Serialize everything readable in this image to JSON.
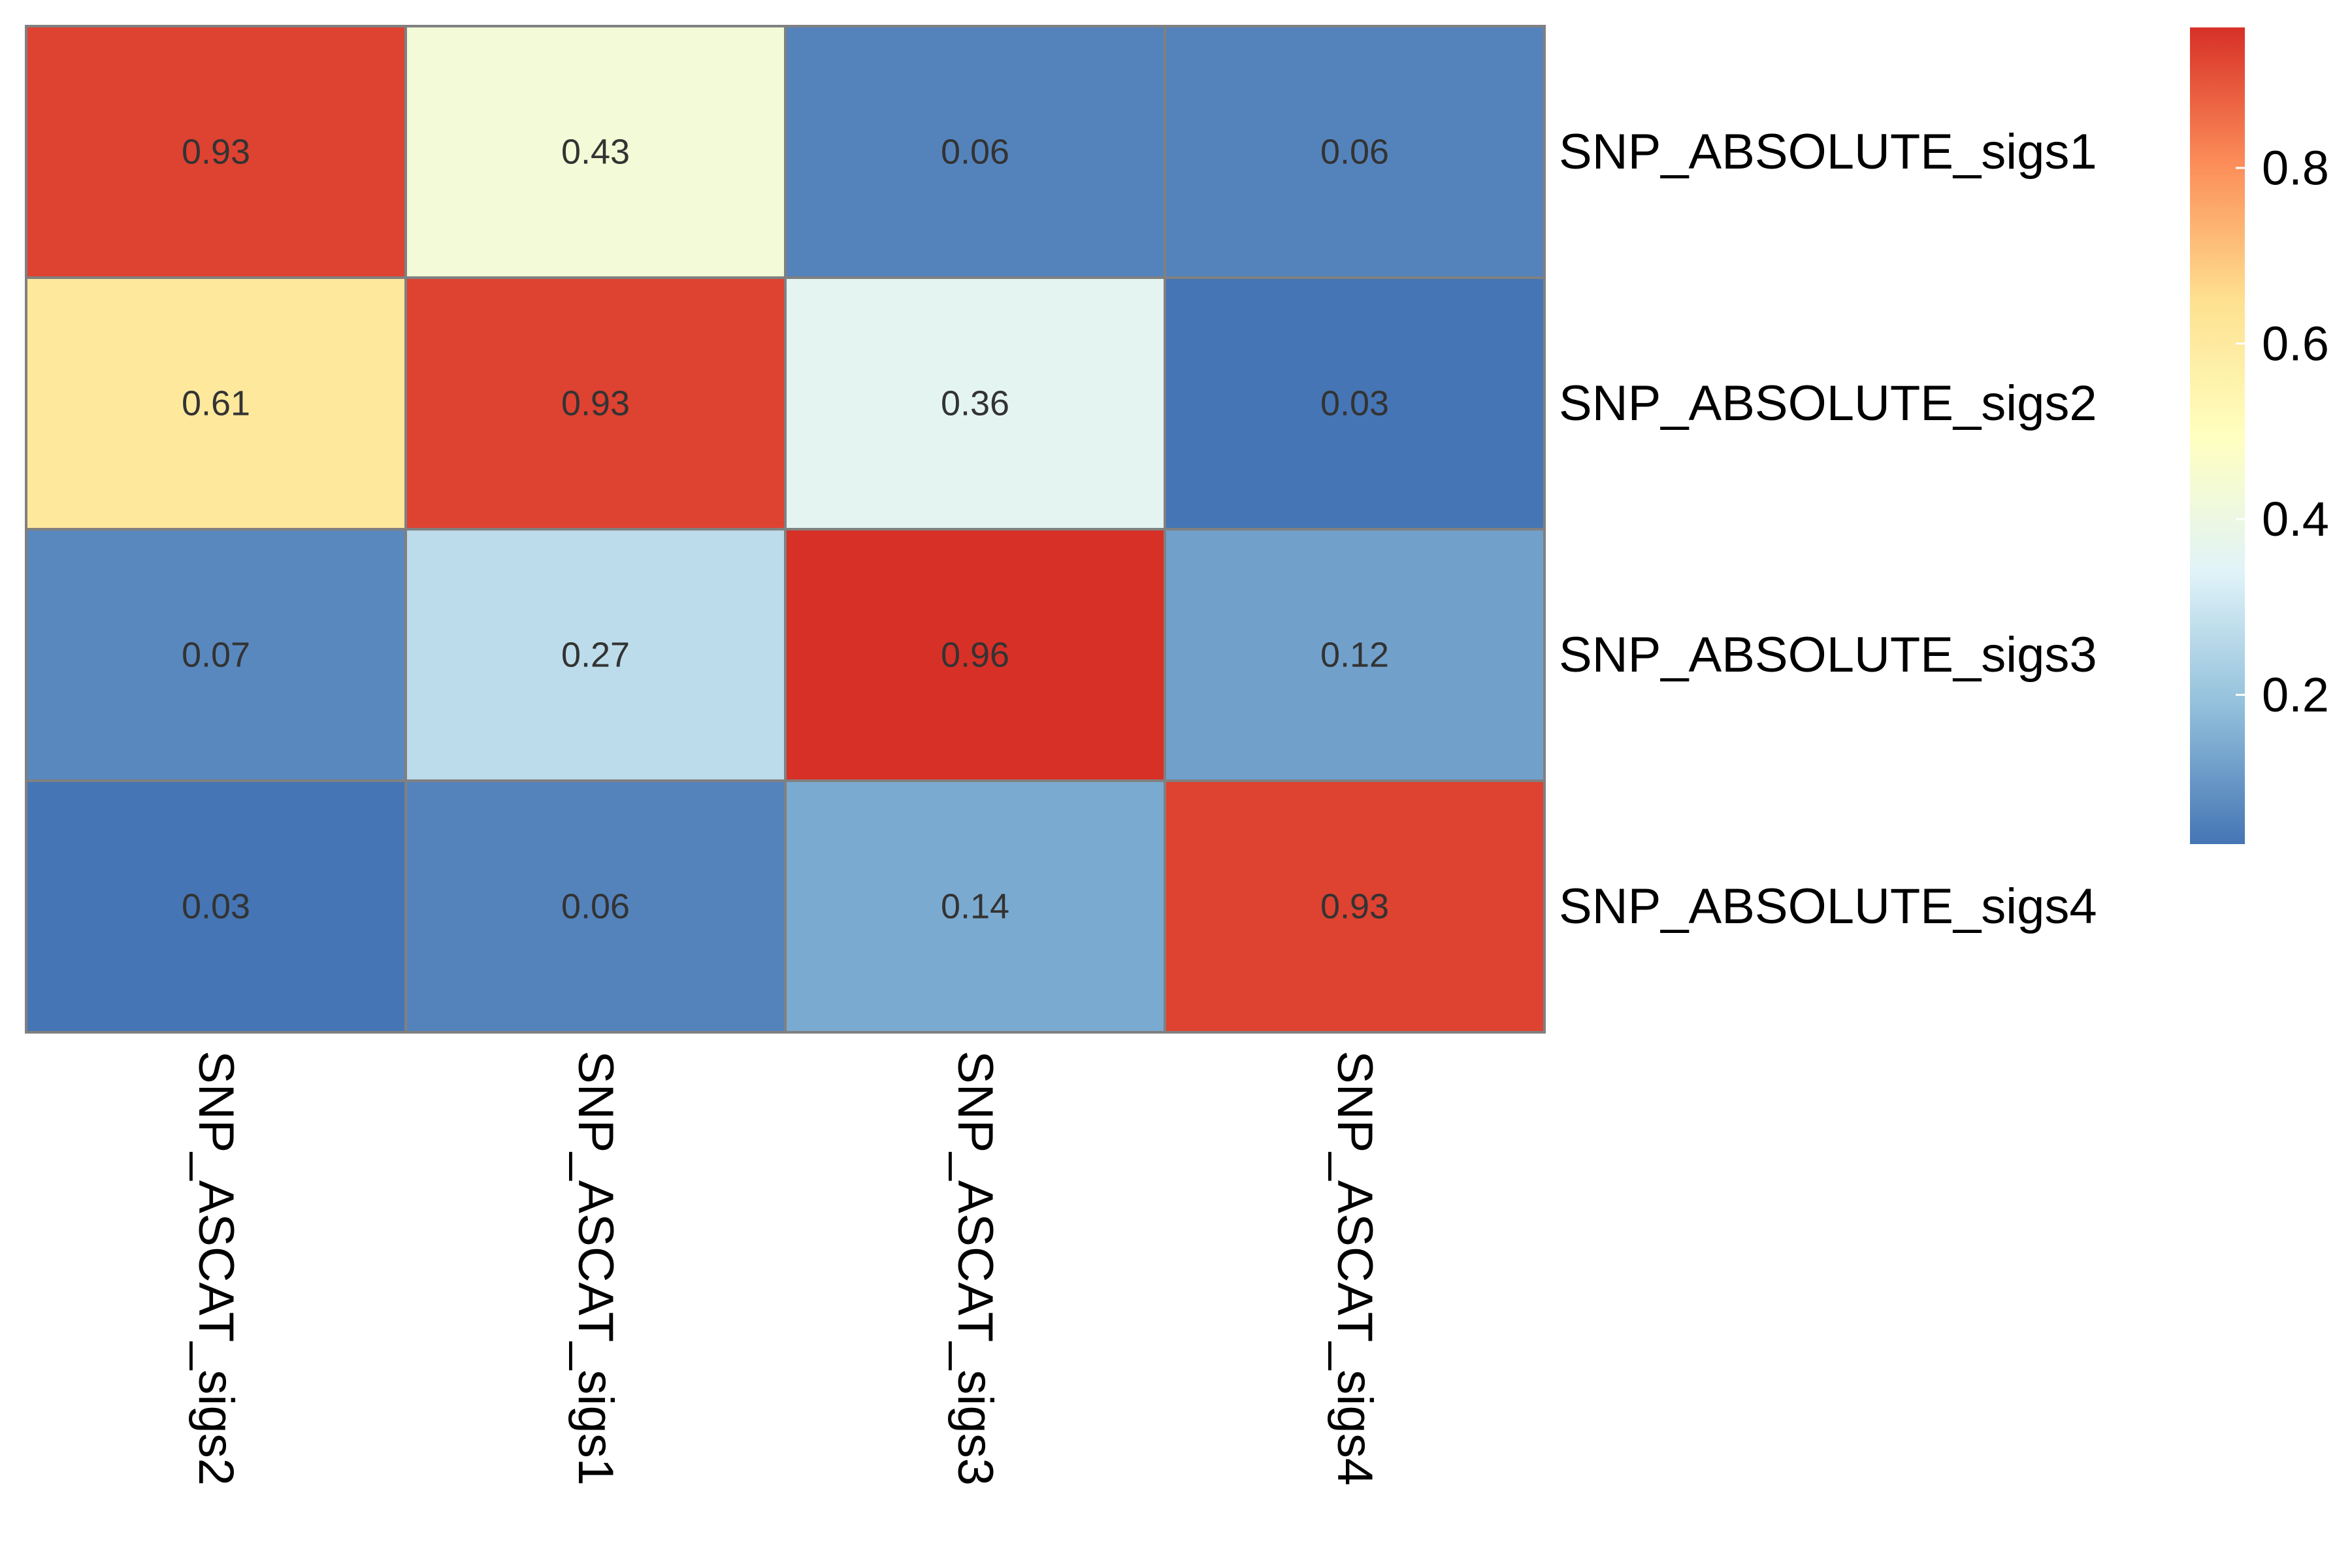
{
  "chart_data": {
    "type": "heatmap",
    "rows": [
      "SNP_ABSOLUTE_sigs1",
      "SNP_ABSOLUTE_sigs2",
      "SNP_ABSOLUTE_sigs3",
      "SNP_ABSOLUTE_sigs4"
    ],
    "columns": [
      "SNP_ASCAT_sigs2",
      "SNP_ASCAT_sigs1",
      "SNP_ASCAT_sigs3",
      "SNP_ASCAT_sigs4"
    ],
    "values": [
      [
        0.93,
        0.43,
        0.06,
        0.06
      ],
      [
        0.61,
        0.93,
        0.36,
        0.03
      ],
      [
        0.07,
        0.27,
        0.96,
        0.12
      ],
      [
        0.03,
        0.06,
        0.14,
        0.93
      ]
    ],
    "value_labels": [
      [
        "0.93",
        "0.43",
        "0.06",
        "0.06"
      ],
      [
        "0.61",
        "0.93",
        "0.36",
        "0.03"
      ],
      [
        "0.07",
        "0.27",
        "0.96",
        "0.12"
      ],
      [
        "0.03",
        "0.06",
        "0.14",
        "0.93"
      ]
    ],
    "color_range": [
      0.03,
      0.96
    ],
    "legend": {
      "position": "right",
      "ticks": [
        0.2,
        0.4,
        0.6,
        0.8
      ],
      "tick_labels": [
        "0.2",
        "0.4",
        "0.6",
        "0.8"
      ]
    },
    "colors": {
      "palette": [
        "#4575B4",
        "#91BFDB",
        "#E0F3F8",
        "#FFFFBF",
        "#FEE090",
        "#FC8D59",
        "#D73027"
      ],
      "cell_border": "#808080"
    },
    "title": "",
    "xlabel": "",
    "ylabel": ""
  }
}
